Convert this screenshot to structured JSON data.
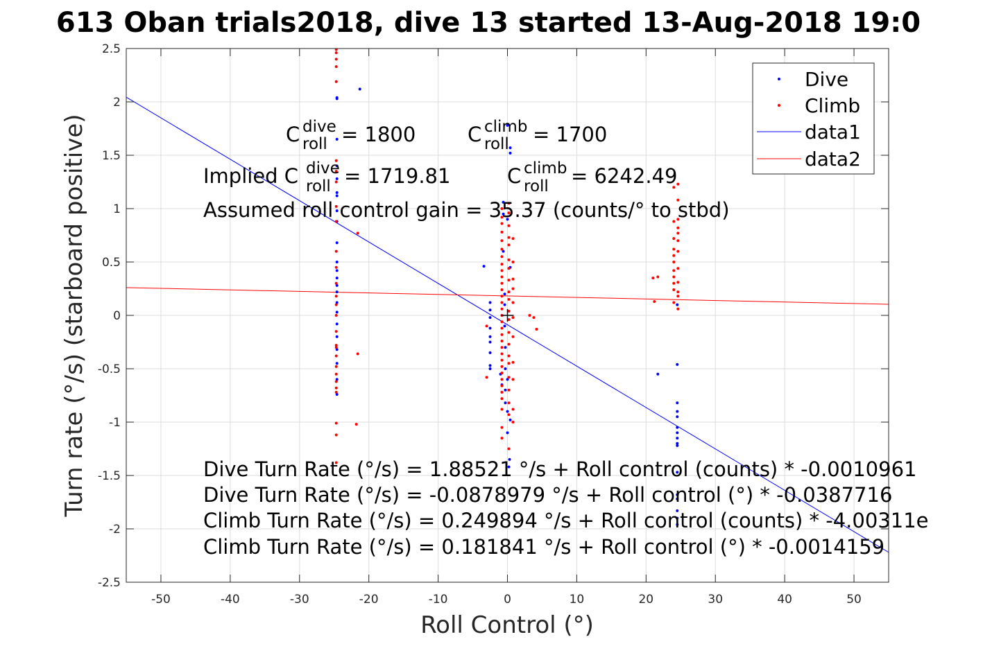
{
  "chart_data": {
    "type": "scatter",
    "title": "613 Oban trials2018, dive 13 started 13-Aug-2018 19:0",
    "xlabel": "Roll Control (°)",
    "ylabel": "Turn rate (°/s) (starboard positive)",
    "xlim": [
      -55,
      55
    ],
    "ylim": [
      -2.5,
      2.5
    ],
    "xticks": [
      -50,
      -40,
      -30,
      -20,
      -10,
      0,
      10,
      20,
      30,
      40,
      50
    ],
    "yticks": [
      -2.5,
      -2,
      -1.5,
      -1,
      -0.5,
      0,
      0.5,
      1,
      1.5,
      2,
      2.5
    ],
    "grid": true,
    "legend_position": "top-right",
    "series": [
      {
        "name": "Dive",
        "kind": "points",
        "color": "#0000ff",
        "points": [
          [
            -24.6,
            2.04
          ],
          [
            -24.6,
            2.03
          ],
          [
            -24.6,
            1.65
          ],
          [
            -24.6,
            1.4
          ],
          [
            -24.6,
            1.28
          ],
          [
            -24.6,
            1.15
          ],
          [
            -24.6,
            1.12
          ],
          [
            -24.6,
            0.98
          ],
          [
            -24.6,
            0.88
          ],
          [
            -24.6,
            0.68
          ],
          [
            -24.6,
            0.5
          ],
          [
            -24.6,
            0.42
          ],
          [
            -24.6,
            0.35
          ],
          [
            -24.6,
            0.28
          ],
          [
            -24.6,
            0.22
          ],
          [
            -24.6,
            0.12
          ],
          [
            -24.6,
            0.03
          ],
          [
            -24.6,
            -0.08
          ],
          [
            -24.6,
            -0.2
          ],
          [
            -24.6,
            -0.32
          ],
          [
            -24.6,
            -0.45
          ],
          [
            -24.6,
            -0.6
          ],
          [
            -24.6,
            -0.74
          ],
          [
            -21.3,
            2.12
          ],
          [
            -3.4,
            0.46
          ],
          [
            -2.5,
            0.12
          ],
          [
            -2.5,
            0.05
          ],
          [
            -2.5,
            -0.02
          ],
          [
            -2.5,
            -0.12
          ],
          [
            -2.5,
            -0.2
          ],
          [
            -2.5,
            -0.25
          ],
          [
            -2.5,
            -0.35
          ],
          [
            -2.5,
            -0.47
          ],
          [
            -2.5,
            -0.5
          ],
          [
            -0.6,
            1.06
          ],
          [
            -0.6,
            0.95
          ],
          [
            -0.6,
            0.6
          ],
          [
            -0.4,
            0.2
          ],
          [
            -0.4,
            0.1
          ],
          [
            -0.4,
            -0.1
          ],
          [
            -0.3,
            -0.3
          ],
          [
            -0.3,
            -0.5
          ],
          [
            -0.3,
            -0.7
          ],
          [
            -0.3,
            -0.82
          ],
          [
            0.0,
            1.78
          ],
          [
            0.0,
            0.9
          ],
          [
            0.0,
            -0.6
          ],
          [
            0.0,
            -0.9
          ],
          [
            0.0,
            -1.1
          ],
          [
            0.2,
            -1.42
          ],
          [
            0.3,
            -1.35
          ],
          [
            0.4,
            1.57
          ],
          [
            0.4,
            1.52
          ],
          [
            0.4,
            0.45
          ],
          [
            0.4,
            -0.98
          ],
          [
            -0.8,
            -0.65
          ],
          [
            -1.0,
            -0.55
          ],
          [
            21.7,
            -0.55
          ],
          [
            24.5,
            0.1
          ],
          [
            24.5,
            -0.46
          ],
          [
            24.5,
            -0.82
          ],
          [
            24.5,
            -0.9
          ],
          [
            24.5,
            -0.95
          ],
          [
            24.5,
            -1.05
          ],
          [
            24.5,
            -1.1
          ],
          [
            24.5,
            -1.15
          ],
          [
            24.5,
            -1.2
          ],
          [
            24.5,
            -1.22
          ],
          [
            24.5,
            -1.47
          ],
          [
            24.5,
            -1.68
          ],
          [
            24.5,
            -1.72
          ],
          [
            24.5,
            -1.83
          ],
          [
            24.5,
            -1.9
          ],
          [
            24.5,
            -1.96
          ]
        ]
      },
      {
        "name": "Climb",
        "kind": "points",
        "color": "#ff0000",
        "points": [
          [
            -24.7,
            2.49
          ],
          [
            -24.7,
            2.46
          ],
          [
            -24.7,
            2.4
          ],
          [
            -24.7,
            2.33
          ],
          [
            -24.7,
            2.19
          ],
          [
            -24.7,
            1.45
          ],
          [
            -24.7,
            1.35
          ],
          [
            -24.7,
            1.25
          ],
          [
            -24.7,
            1.02
          ],
          [
            -24.7,
            0.88
          ],
          [
            -24.7,
            0.6
          ],
          [
            -24.7,
            0.45
          ],
          [
            -24.7,
            0.3
          ],
          [
            -24.7,
            0.18
          ],
          [
            -24.7,
            0.1
          ],
          [
            -24.7,
            0.0
          ],
          [
            -24.7,
            -0.15
          ],
          [
            -24.7,
            -0.28
          ],
          [
            -24.7,
            -0.3
          ],
          [
            -24.7,
            -0.38
          ],
          [
            -24.7,
            -0.48
          ],
          [
            -24.7,
            -0.55
          ],
          [
            -24.7,
            -0.62
          ],
          [
            -24.7,
            -0.68
          ],
          [
            -24.7,
            -0.72
          ],
          [
            -24.7,
            -1.01
          ],
          [
            -24.7,
            -1.12
          ],
          [
            -24.7,
            -1.38
          ],
          [
            -21.6,
            0.77
          ],
          [
            -21.6,
            -0.36
          ],
          [
            -21.8,
            -1.02
          ],
          [
            -3.0,
            -0.58
          ],
          [
            -3.0,
            -0.1
          ],
          [
            -0.8,
            1.0
          ],
          [
            -0.8,
            0.92
          ],
          [
            -0.8,
            0.86
          ],
          [
            -0.8,
            0.78
          ],
          [
            -0.8,
            0.7
          ],
          [
            -0.8,
            0.62
          ],
          [
            -0.8,
            0.55
          ],
          [
            -0.8,
            0.48
          ],
          [
            -0.8,
            0.42
          ],
          [
            -0.8,
            0.36
          ],
          [
            -0.8,
            0.3
          ],
          [
            -0.8,
            0.24
          ],
          [
            -0.8,
            0.18
          ],
          [
            -0.8,
            0.12
          ],
          [
            -0.8,
            0.06
          ],
          [
            -0.8,
            0.0
          ],
          [
            -0.8,
            -0.06
          ],
          [
            -0.8,
            -0.12
          ],
          [
            -0.8,
            -0.18
          ],
          [
            -0.8,
            -0.24
          ],
          [
            -0.8,
            -0.3
          ],
          [
            -0.8,
            -0.36
          ],
          [
            -0.8,
            -0.42
          ],
          [
            -0.8,
            -0.48
          ],
          [
            -0.8,
            -0.54
          ],
          [
            -0.8,
            -0.6
          ],
          [
            -0.8,
            -0.66
          ],
          [
            -0.8,
            -0.72
          ],
          [
            -0.8,
            -0.78
          ],
          [
            -0.8,
            -0.88
          ],
          [
            -0.8,
            -1.05
          ],
          [
            -0.8,
            -1.15
          ],
          [
            0.2,
            1.05
          ],
          [
            0.2,
            0.96
          ],
          [
            0.2,
            0.84
          ],
          [
            0.2,
            0.73
          ],
          [
            0.2,
            0.66
          ],
          [
            0.2,
            0.52
          ],
          [
            0.2,
            0.44
          ],
          [
            0.2,
            0.33
          ],
          [
            0.2,
            0.22
          ],
          [
            0.2,
            0.15
          ],
          [
            0.2,
            0.04
          ],
          [
            0.2,
            -0.04
          ],
          [
            0.2,
            -0.16
          ],
          [
            0.2,
            -0.27
          ],
          [
            0.2,
            -0.38
          ],
          [
            0.2,
            -0.45
          ],
          [
            0.2,
            -0.58
          ],
          [
            0.2,
            -0.7
          ],
          [
            0.2,
            -0.82
          ],
          [
            0.2,
            -0.93
          ],
          [
            0.2,
            -1.25
          ],
          [
            0.8,
            0.72
          ],
          [
            0.8,
            0.5
          ],
          [
            0.8,
            0.34
          ],
          [
            0.8,
            0.25
          ],
          [
            0.8,
            0.12
          ],
          [
            0.8,
            -0.02
          ],
          [
            0.8,
            -0.2
          ],
          [
            0.8,
            -0.44
          ],
          [
            0.8,
            -0.6
          ],
          [
            0.8,
            -0.88
          ],
          [
            0.8,
            -1.0
          ],
          [
            3.2,
            0.0
          ],
          [
            3.8,
            -0.02
          ],
          [
            4.2,
            -0.13
          ],
          [
            21.0,
            0.35
          ],
          [
            21.7,
            0.36
          ],
          [
            21.2,
            0.13
          ],
          [
            24.0,
            1.2
          ],
          [
            24.0,
            0.88
          ],
          [
            24.0,
            0.72
          ],
          [
            24.0,
            0.62
          ],
          [
            24.0,
            0.56
          ],
          [
            24.0,
            0.5
          ],
          [
            24.0,
            0.42
          ],
          [
            24.0,
            0.36
          ],
          [
            24.0,
            0.3
          ],
          [
            24.0,
            0.24
          ],
          [
            24.0,
            0.12
          ],
          [
            24.6,
            1.23
          ],
          [
            24.6,
            1.08
          ],
          [
            24.6,
            0.9
          ],
          [
            24.6,
            0.82
          ],
          [
            24.6,
            0.77
          ],
          [
            24.6,
            0.7
          ],
          [
            24.6,
            0.6
          ],
          [
            24.6,
            0.44
          ],
          [
            24.6,
            0.31
          ],
          [
            24.6,
            0.22
          ],
          [
            24.6,
            0.18
          ],
          [
            24.6,
            0.06
          ]
        ]
      },
      {
        "name": "data1",
        "kind": "line",
        "color": "#0000ff",
        "x": [
          -55,
          55
        ],
        "y": [
          2.044,
          -2.22
        ]
      },
      {
        "name": "data2",
        "kind": "line",
        "color": "#ff0000",
        "x": [
          -55,
          55
        ],
        "y": [
          0.26,
          0.104
        ]
      }
    ],
    "annotations": {
      "c_dive": {
        "base": "C",
        "sup": "dive",
        "sub": "roll",
        "value": " = 1800"
      },
      "c_climb": {
        "base": "C",
        "sup": "climb",
        "sub": "roll",
        "value": " = 1700"
      },
      "implied_dive": {
        "prefix": "Implied C",
        "sup": "dive",
        "sub": "roll",
        "value": " = 1719.81"
      },
      "implied_climb": {
        "base": "C",
        "sup": "climb",
        "sub": "roll",
        "value": " = 6242.49"
      },
      "gain": "Assumed roll control gain = 35.37 (counts/° to stbd)",
      "eq1": "Dive Turn Rate (°/s) = 1.88521 °/s + Roll control (counts) * -0.0010961",
      "eq2": "Dive Turn Rate (°/s) = -0.0878979 °/s + Roll control (°) * -0.0387716",
      "eq3": "Climb Turn Rate (°/s) = 0.249894 °/s + Roll control (counts) * -4.00311e",
      "eq4": "Climb Turn Rate (°/s) = 0.181841 °/s + Roll control (°) * -0.0014159"
    },
    "marker": {
      "symbol": "+",
      "x": 0,
      "y": 0,
      "color": "#000000"
    }
  }
}
